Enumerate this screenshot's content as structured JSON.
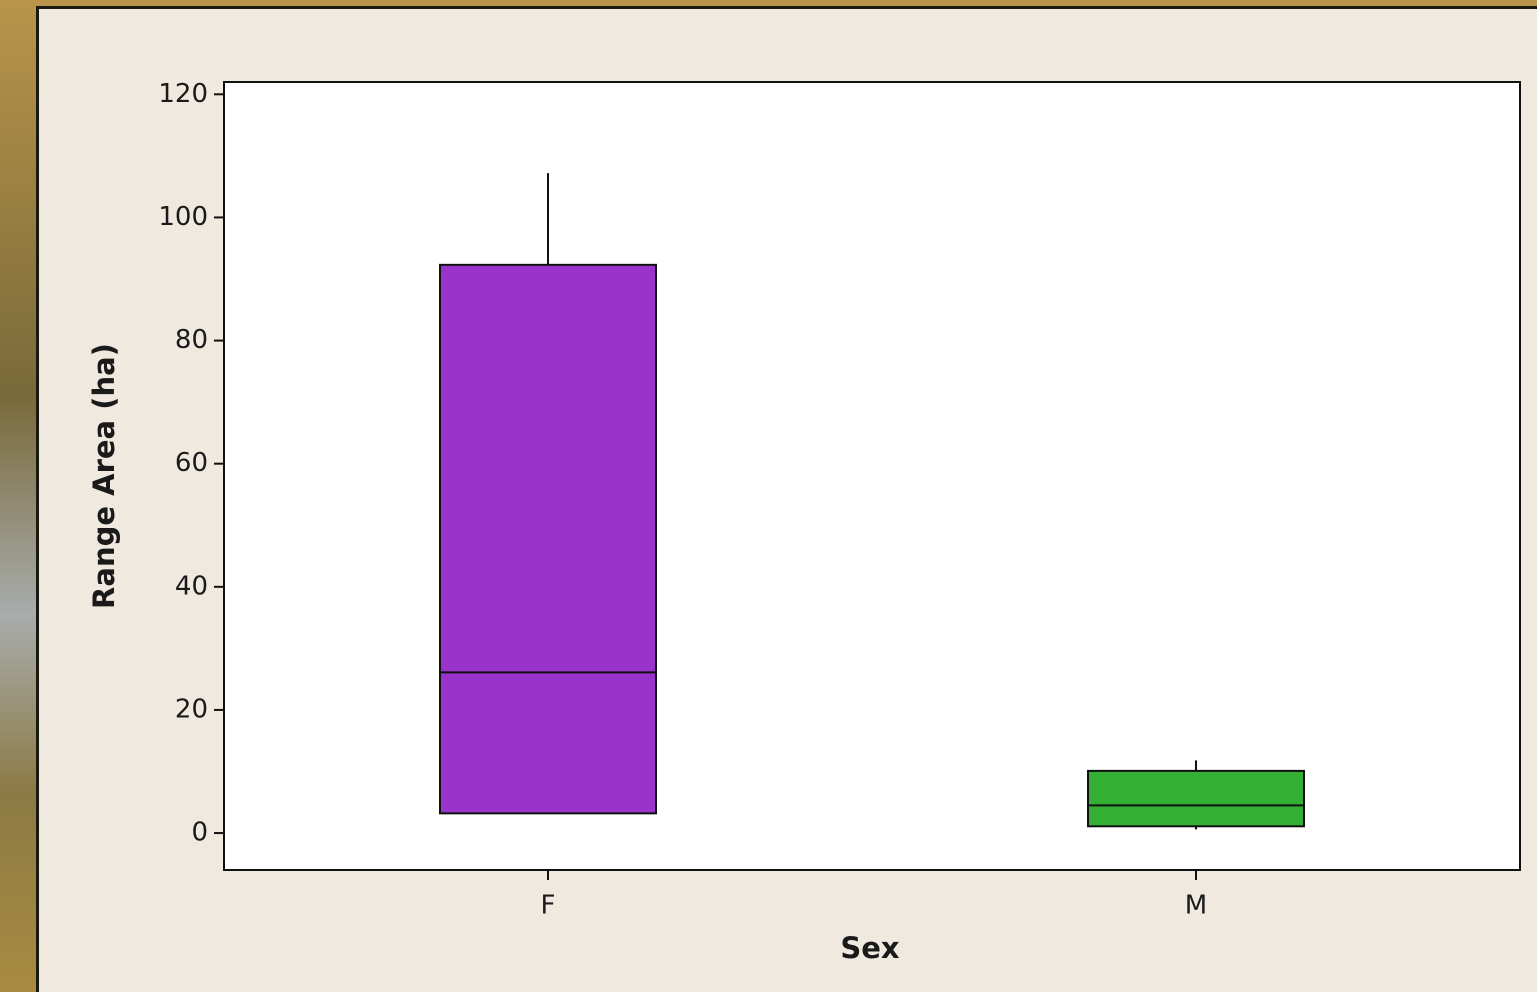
{
  "chart_data": {
    "type": "box",
    "x_label": "Sex",
    "y_label": "Range Area (ha)",
    "categories": [
      "F",
      "M"
    ],
    "boxes": [
      {
        "min": 3.2,
        "q1": 3.2,
        "median": 26.1,
        "q3": 92.3,
        "max": 107.2,
        "color": "#9933cc"
      },
      {
        "min": 0.6,
        "q1": 1.1,
        "median": 4.5,
        "q3": 10.1,
        "max": 11.8,
        "color": "#33b033"
      }
    ],
    "ylim": [
      -6,
      122
    ],
    "yticks": [
      0,
      20,
      40,
      60,
      80,
      100,
      120
    ]
  }
}
